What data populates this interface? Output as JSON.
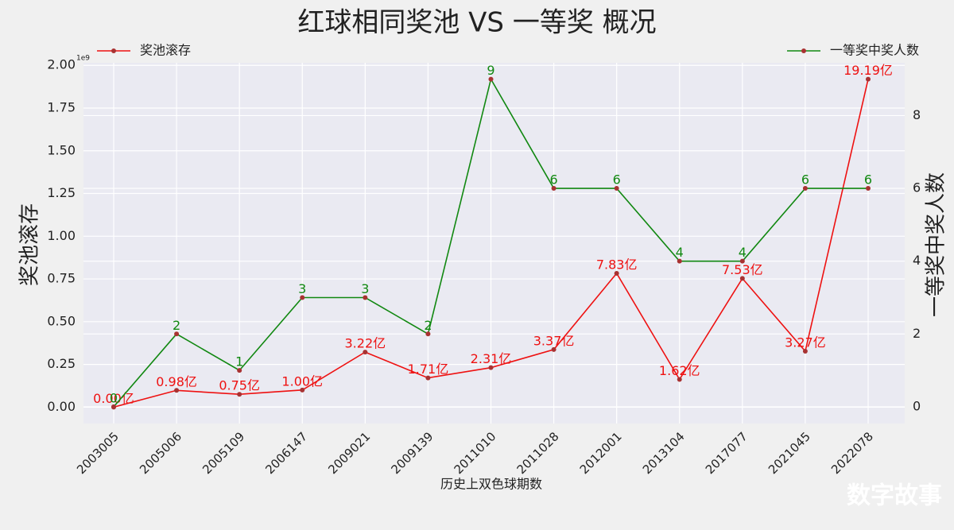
{
  "chart_data": {
    "type": "line",
    "title": "红球相同奖池 VS 一等奖 概况",
    "xlabel": "历史上双色球期数",
    "ylabel": "奖池滚存",
    "y2label": "一等奖中奖人数",
    "y_offset_label": "1e9",
    "watermark": "数字故事",
    "categories": [
      "2003005",
      "2005006",
      "2005109",
      "2006147",
      "2009021",
      "2009139",
      "2011010",
      "2011028",
      "2012001",
      "2013104",
      "2017077",
      "2021045",
      "2022078"
    ],
    "series": [
      {
        "name": "奖池滚存",
        "color": "#ee1111",
        "marker_color": "#a83232",
        "legend": "upper left",
        "values": [
          0.0,
          0.098,
          0.075,
          0.1,
          0.322,
          0.171,
          0.231,
          0.337,
          0.783,
          0.162,
          0.753,
          0.327,
          1.919
        ],
        "value_labels": [
          "0.00亿",
          "0.98亿",
          "0.75亿",
          "1.00亿",
          "3.22亿",
          "1.71亿",
          "2.31亿",
          "3.37亿",
          "7.83亿",
          "1.62亿",
          "7.53亿",
          "3.27亿",
          "19.19亿"
        ]
      },
      {
        "name": "一等奖中奖人数",
        "color": "#118811",
        "marker_color": "#a83232",
        "legend": "upper right",
        "axis": "y2",
        "values": [
          0,
          2,
          1,
          3,
          3,
          2,
          9,
          6,
          6,
          4,
          4,
          6,
          6
        ]
      }
    ],
    "ylim": [
      -0.096,
      2.015
    ],
    "yticks": [
      {
        "value": 0,
        "label": "0.00"
      },
      {
        "value": 0.25,
        "label": "0.25"
      },
      {
        "value": 0.5,
        "label": "0.50"
      },
      {
        "value": 0.75,
        "label": "0.75"
      },
      {
        "value": 1,
        "label": "1.00"
      },
      {
        "value": 1.25,
        "label": "1.25"
      },
      {
        "value": 1.5,
        "label": "1.50"
      },
      {
        "value": 1.75,
        "label": "1.75"
      },
      {
        "value": 2,
        "label": "2.00"
      }
    ],
    "y2lim": [
      -0.46,
      9.45
    ],
    "y2ticks": [
      0,
      2,
      4,
      6,
      8
    ],
    "grid": true,
    "plot_background": "#eaeaf2"
  }
}
